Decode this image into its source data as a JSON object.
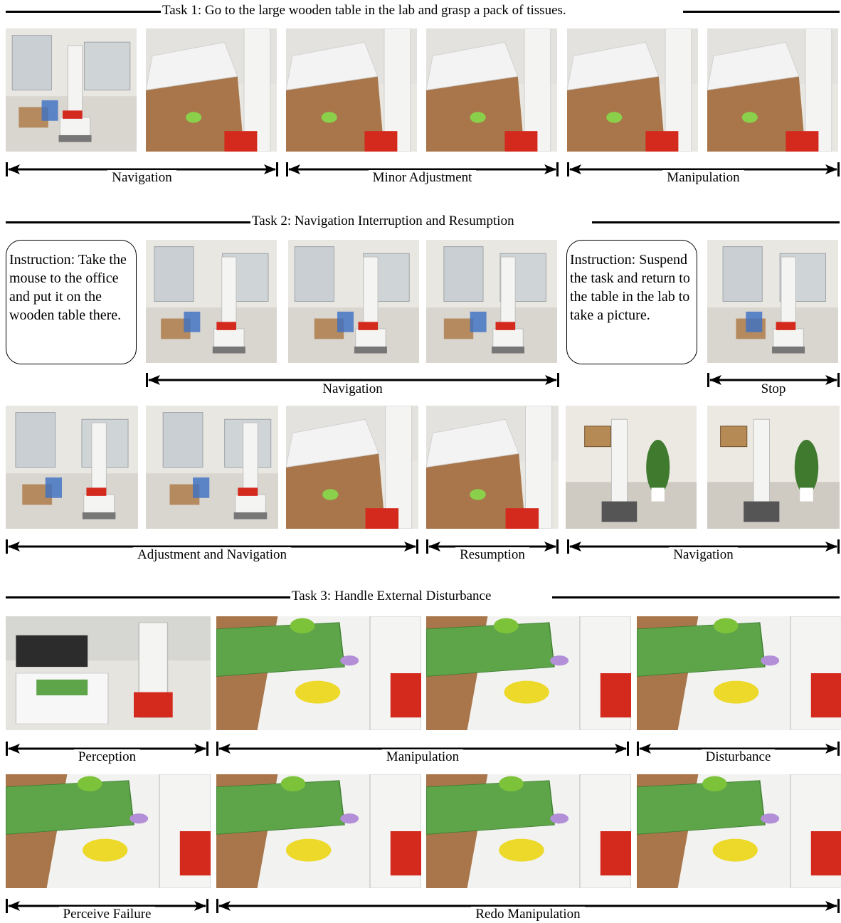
{
  "task1": {
    "title": "Task 1: Go to the large wooden table in the lab and grasp a pack of tissues.",
    "segments": [
      "Navigation",
      "Minor Adjustment",
      "Manipulation"
    ]
  },
  "task2": {
    "title": "Task 2: Navigation Interruption and Resumption",
    "instruction1": "Instruction: Take the mouse to the office and put it on the wooden table there.",
    "instruction2": "Instruction: Suspend the task and return to the table in the lab to take a picture.",
    "row1_segments": [
      "Navigation",
      "Stop"
    ],
    "row2_segments": [
      "Adjustment and Navigation",
      "Resumption",
      "Navigation"
    ]
  },
  "task3": {
    "title": "Task 3: Handle External Disturbance",
    "row1_segments": [
      "Perception",
      "Manipulation",
      "Disturbance"
    ],
    "row2_segments": [
      "Perceive Failure",
      "Redo Manipulation"
    ]
  },
  "colors": {
    "floor": "#d9d6cf",
    "wall": "#e9e7e2",
    "robot": "#f4f4f2",
    "robot_red": "#d42a1e",
    "wood": "#a8764a",
    "green_box": "#5ea54a",
    "lemon": "#ecd92a",
    "apple": "#7cc33a",
    "duck": "#b38fd8"
  }
}
